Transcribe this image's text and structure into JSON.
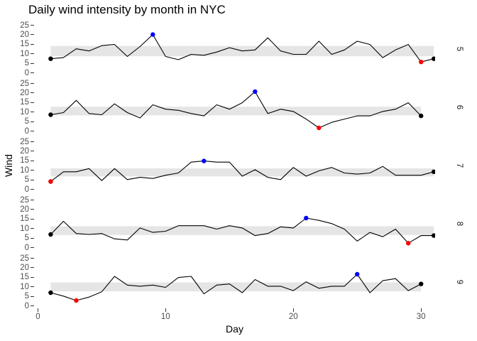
{
  "chart_data": {
    "type": "line",
    "title": "Daily wind intensity by month in NYC",
    "xlabel": "Day",
    "ylabel": "Wind",
    "x_ticks": [
      0,
      10,
      20,
      30
    ],
    "y_ticks": [
      0,
      5,
      10,
      15,
      20,
      25
    ],
    "x_domain": [
      -0.3,
      31.1
    ],
    "y_domain": [
      -1.3,
      26.3
    ],
    "grid": false,
    "legend": "none",
    "facet_variable": "month",
    "facet_strip_side": "right",
    "colors": {
      "line": "#000000",
      "iqr_band": "#e5e5e5",
      "first_last_marker": "#000000",
      "max_marker": "#0000ff",
      "min_marker": "#ff0000",
      "axis_text": "#4d4d4d",
      "axis_title": "#000000",
      "tick_mark": "#333333",
      "strip_text": "#1a1a1a",
      "background": "#ffffff"
    },
    "facets": [
      {
        "label": "5",
        "day_range": [
          1,
          31
        ],
        "wind": [
          7.4,
          8.0,
          12.6,
          11.5,
          14.3,
          14.9,
          8.6,
          13.8,
          20.1,
          8.6,
          6.9,
          9.7,
          9.2,
          10.9,
          13.2,
          11.5,
          12.0,
          18.4,
          11.5,
          9.7,
          9.7,
          16.6,
          9.7,
          12.0,
          16.6,
          14.9,
          8.0,
          12.0,
          14.9,
          5.7,
          7.4
        ],
        "iqr_band": [
          8.7,
          14.1
        ],
        "highlights": {
          "first": {
            "day": 1,
            "wind": 7.4
          },
          "last": {
            "day": 31,
            "wind": 7.4
          },
          "max": {
            "day": 9,
            "wind": 20.1
          },
          "min": {
            "day": 30,
            "wind": 5.7
          }
        }
      },
      {
        "label": "6",
        "day_range": [
          1,
          30
        ],
        "wind": [
          8.6,
          9.7,
          16.1,
          9.2,
          8.6,
          14.3,
          9.7,
          6.9,
          13.8,
          11.5,
          10.9,
          9.2,
          8.0,
          13.8,
          11.5,
          14.9,
          20.7,
          9.2,
          11.5,
          10.3,
          6.3,
          1.7,
          4.6,
          6.3,
          8.0,
          8.0,
          10.3,
          11.5,
          14.9,
          8.0
        ],
        "iqr_band": [
          8.2,
          12.8
        ],
        "highlights": {
          "first": {
            "day": 1,
            "wind": 8.6
          },
          "last": {
            "day": 30,
            "wind": 8.0
          },
          "max": {
            "day": 17,
            "wind": 20.7
          },
          "min": {
            "day": 22,
            "wind": 1.7
          }
        }
      },
      {
        "label": "7",
        "day_range": [
          1,
          31
        ],
        "wind": [
          4.1,
          9.2,
          9.2,
          10.9,
          4.6,
          10.9,
          5.1,
          6.3,
          5.7,
          7.4,
          8.6,
          14.3,
          14.9,
          14.3,
          14.3,
          6.9,
          10.3,
          6.3,
          5.1,
          11.5,
          6.9,
          9.7,
          11.5,
          8.6,
          8.0,
          8.6,
          12.0,
          7.4,
          7.4,
          7.4,
          9.2
        ],
        "iqr_band": [
          6.8,
          11.0
        ],
        "highlights": {
          "first": {
            "day": 1,
            "wind": 4.1
          },
          "last": {
            "day": 31,
            "wind": 9.2
          },
          "max": {
            "day": 13,
            "wind": 14.9
          },
          "min": {
            "day": 1,
            "wind": 4.1
          }
        }
      },
      {
        "label": "8",
        "day_range": [
          1,
          31
        ],
        "wind": [
          6.9,
          13.8,
          7.4,
          6.9,
          7.4,
          4.6,
          4.0,
          10.3,
          8.0,
          8.6,
          11.5,
          11.5,
          11.5,
          9.7,
          11.5,
          10.3,
          6.3,
          7.4,
          10.9,
          10.3,
          15.5,
          14.3,
          12.6,
          9.7,
          3.4,
          8.0,
          5.7,
          9.7,
          2.3,
          6.3,
          6.3
        ],
        "iqr_band": [
          6.6,
          11.2
        ],
        "highlights": {
          "first": {
            "day": 1,
            "wind": 6.9
          },
          "last": {
            "day": 31,
            "wind": 6.3
          },
          "max": {
            "day": 21,
            "wind": 15.5
          },
          "min": {
            "day": 29,
            "wind": 2.3
          }
        }
      },
      {
        "label": "9",
        "day_range": [
          1,
          30
        ],
        "wind": [
          6.9,
          5.1,
          2.8,
          4.6,
          7.4,
          15.5,
          10.9,
          10.3,
          10.9,
          9.7,
          14.9,
          15.5,
          6.3,
          10.9,
          11.5,
          6.9,
          13.8,
          10.3,
          10.3,
          8.0,
          12.6,
          9.2,
          10.3,
          10.3,
          16.6,
          6.9,
          13.2,
          14.3,
          8.0,
          11.5
        ],
        "iqr_band": [
          7.6,
          12.3
        ],
        "highlights": {
          "first": {
            "day": 1,
            "wind": 6.9
          },
          "last": {
            "day": 30,
            "wind": 11.5
          },
          "max": {
            "day": 25,
            "wind": 16.6
          },
          "min": {
            "day": 3,
            "wind": 2.8
          }
        }
      }
    ]
  }
}
